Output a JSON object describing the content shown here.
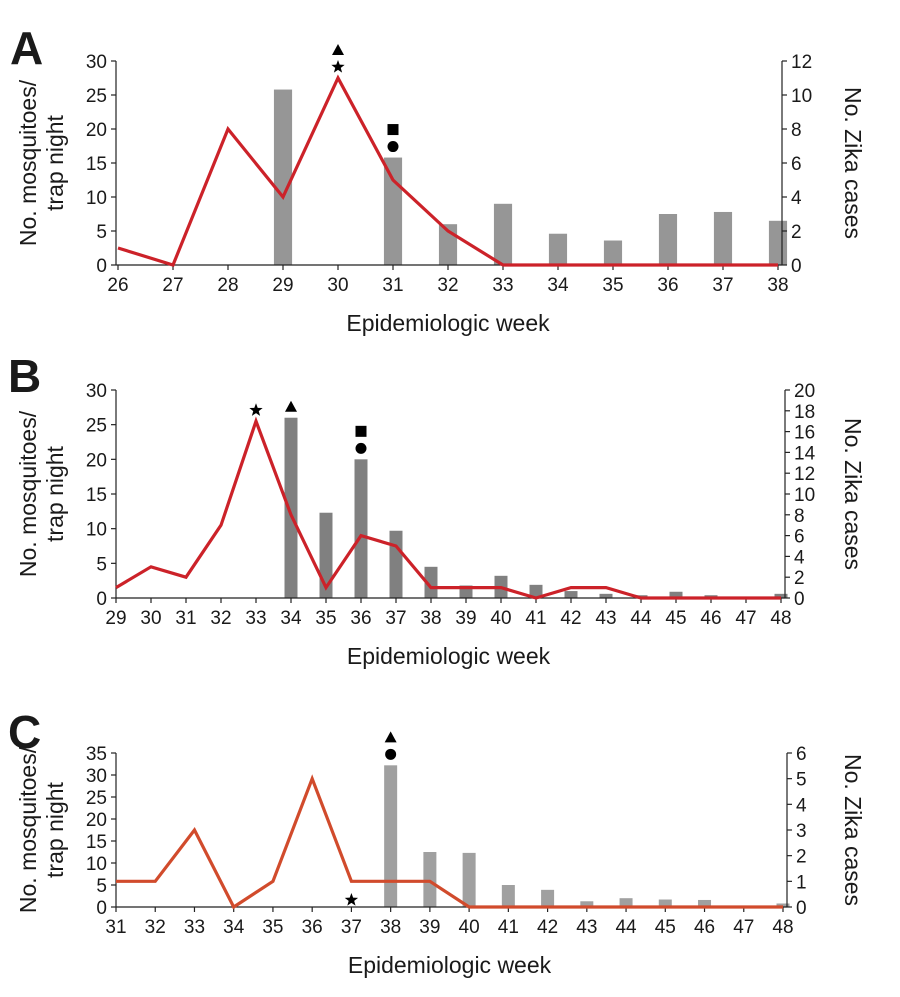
{
  "chart_data": [
    {
      "panel": "A",
      "type": "bar+line",
      "x": [
        26,
        27,
        28,
        29,
        30,
        31,
        32,
        33,
        34,
        35,
        36,
        37,
        38
      ],
      "bars": {
        "axis": "left",
        "values": [
          null,
          null,
          null,
          25.8,
          null,
          15.8,
          6,
          9,
          4.6,
          3.6,
          7.5,
          7.8,
          6.5
        ],
        "color": "#969696"
      },
      "line": {
        "axis": "right",
        "values": [
          1,
          0,
          8,
          4,
          11,
          5,
          2,
          0,
          0,
          0,
          0,
          0,
          0
        ],
        "color": "#cc2229"
      },
      "markers": [
        {
          "x": 30,
          "symbols": [
            "triangle",
            "star"
          ]
        },
        {
          "x": 31,
          "symbols": [
            "square",
            "circle"
          ]
        }
      ],
      "ylabel_left": "No. mosquitoes/ trap night",
      "ylabel_right": "No. Zika cases",
      "xlabel": "Epidemiologic week",
      "ylim_left": [
        0,
        30
      ],
      "ylim_right": [
        0,
        12
      ],
      "yticks_left": [
        0,
        5,
        10,
        15,
        20,
        25,
        30
      ],
      "yticks_right": [
        0,
        2,
        4,
        6,
        8,
        10,
        12
      ]
    },
    {
      "panel": "B",
      "type": "bar+line",
      "x": [
        29,
        30,
        31,
        32,
        33,
        34,
        35,
        36,
        37,
        38,
        39,
        40,
        41,
        42,
        43,
        44,
        45,
        46,
        47,
        48
      ],
      "bars": {
        "axis": "left",
        "values": [
          null,
          null,
          null,
          null,
          null,
          26,
          12.3,
          20,
          9.7,
          4.5,
          1.8,
          3.2,
          1.9,
          1,
          0.6,
          0.4,
          0.9,
          0.4,
          0.2,
          0.6
        ],
        "color": "#808080"
      },
      "line": {
        "axis": "right",
        "values": [
          1,
          3,
          2,
          7,
          17,
          8,
          1,
          6,
          5,
          1,
          1,
          1,
          0,
          1,
          1,
          0,
          0,
          0,
          0,
          0
        ],
        "color": "#cc2229"
      },
      "markers": [
        {
          "x": 33,
          "symbols": [
            "star"
          ]
        },
        {
          "x": 34,
          "symbols": [
            "triangle"
          ]
        },
        {
          "x": 36,
          "symbols": [
            "square",
            "circle"
          ]
        }
      ],
      "ylabel_left": "No. mosquitoes/ trap night",
      "ylabel_right": "No. Zika cases",
      "xlabel": "Epidemiologic week",
      "ylim_left": [
        0,
        30
      ],
      "ylim_right": [
        0,
        20
      ],
      "yticks_left": [
        0,
        5,
        10,
        15,
        20,
        25,
        30
      ],
      "yticks_right": [
        0,
        2,
        4,
        6,
        8,
        10,
        12,
        14,
        16,
        18,
        20
      ]
    },
    {
      "panel": "C",
      "type": "bar+line",
      "x": [
        31,
        32,
        33,
        34,
        35,
        36,
        37,
        38,
        39,
        40,
        41,
        42,
        43,
        44,
        45,
        46,
        47,
        48
      ],
      "bars": {
        "axis": "left",
        "values": [
          null,
          null,
          null,
          null,
          null,
          null,
          null,
          32.2,
          12.5,
          12.3,
          5,
          3.9,
          1.3,
          2,
          1.7,
          1.6,
          null,
          0.8
        ],
        "color": "#a0a0a0"
      },
      "line": {
        "axis": "right",
        "values": [
          1,
          1,
          3,
          0,
          1,
          5,
          1,
          1,
          1,
          0,
          0,
          0,
          0,
          0,
          0,
          0,
          0,
          0
        ],
        "color": "#d14b2c"
      },
      "markers": [
        {
          "x": 37,
          "symbols": [
            "star"
          ],
          "position": "bottom"
        },
        {
          "x": 38,
          "symbols": [
            "triangle",
            "circle"
          ]
        }
      ],
      "ylabel_left": "No. mosquitoes/ trap night",
      "ylabel_right": "No. Zika cases",
      "xlabel": "Epidemiologic week",
      "ylim_left": [
        0,
        35
      ],
      "ylim_right": [
        0,
        6
      ],
      "yticks_left": [
        0,
        5,
        10,
        15,
        20,
        25,
        30,
        35
      ],
      "yticks_right": [
        0,
        1,
        2,
        3,
        4,
        5,
        6
      ]
    }
  ]
}
